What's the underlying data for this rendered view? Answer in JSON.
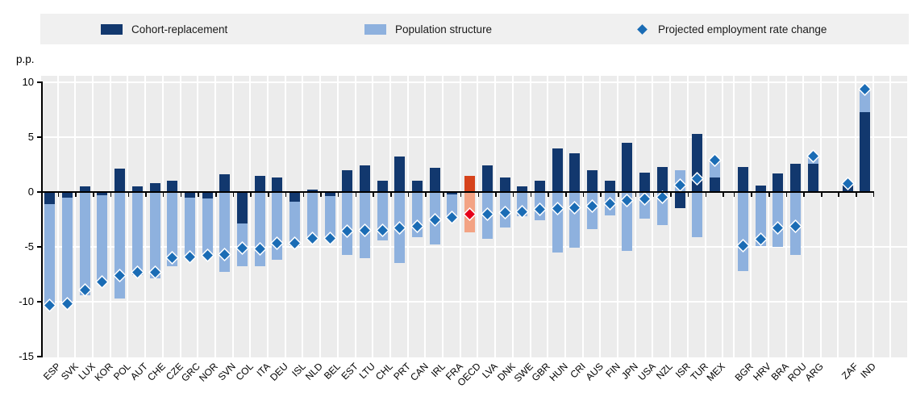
{
  "legend": {
    "items": [
      {
        "label": "Cohort-replacement",
        "marker": "square-swatch",
        "color": "#12386e"
      },
      {
        "label": "Population structure",
        "marker": "square-swatch",
        "color": "#8eb1de"
      },
      {
        "label": "Projected employment rate change",
        "marker": "diamond-marker",
        "color": "#1a6cb5"
      }
    ]
  },
  "y_axis": {
    "title": "p.p.",
    "ticks": [
      10,
      5,
      0,
      -5,
      -10,
      -15
    ]
  },
  "colors": {
    "cohort": "#12386e",
    "population": "#8eb1de",
    "projected": "#1a6cb5",
    "oecd_cohort": "#d6431c",
    "oecd_population": "#f3a384",
    "oecd_projected": "#e60019",
    "plot_bg": "#ececec",
    "legend_bg": "#f0f0f0",
    "gridline": "#ffffff",
    "axis": "#000000"
  },
  "chart_data": {
    "type": "bar",
    "stacked": true,
    "title": "",
    "ylabel": "p.p.",
    "ylim": [
      -15,
      10
    ],
    "yticks": [
      10,
      5,
      0,
      -5,
      -10,
      -15
    ],
    "grid": "horizontal-white-on-gray",
    "legend_position": "top",
    "highlight_category": "OECD",
    "gaps_after": [
      "MEX",
      "ARG"
    ],
    "categories": [
      "ESP",
      "SVK",
      "LUX",
      "KOR",
      "POL",
      "AUT",
      "CHE",
      "CZE",
      "GRC",
      "NOR",
      "SVN",
      "COL",
      "ITA",
      "DEU",
      "ISL",
      "NLD",
      "BEL",
      "EST",
      "LTU",
      "CHL",
      "PRT",
      "CAN",
      "IRL",
      "FRA",
      "OECD",
      "LVA",
      "DNK",
      "SWE",
      "GBR",
      "HUN",
      "CRI",
      "AUS",
      "FIN",
      "JPN",
      "USA",
      "NZL",
      "ISR",
      "TUR",
      "MEX",
      "BGR",
      "HRV",
      "BRA",
      "ROU",
      "ARG",
      "ZAF",
      "IND"
    ],
    "series": [
      {
        "name": "Cohort-replacement",
        "render": "bar",
        "values": [
          -1.1,
          -0.5,
          0.5,
          -0.3,
          2.1,
          0.5,
          0.8,
          1.0,
          -0.5,
          -0.6,
          1.6,
          -2.9,
          1.5,
          1.3,
          -0.9,
          0.2,
          -0.4,
          2.0,
          2.4,
          1.0,
          3.2,
          1.0,
          2.2,
          -0.2,
          1.5,
          2.4,
          1.3,
          0.5,
          1.0,
          4.0,
          3.5,
          2.0,
          1.0,
          4.5,
          1.8,
          2.3,
          -1.5,
          5.3,
          1.3,
          2.3,
          0.6,
          1.7,
          2.6,
          2.6,
          0.7,
          7.3
        ]
      },
      {
        "name": "Population structure",
        "render": "bar",
        "values": [
          -9.2,
          -9.7,
          -9.4,
          -7.9,
          -9.7,
          -7.6,
          -7.9,
          -6.8,
          -5.3,
          -5.2,
          -7.3,
          -3.9,
          -6.8,
          -6.2,
          -4.0,
          -4.3,
          -3.7,
          -5.7,
          -6.0,
          -4.4,
          -6.5,
          -4.1,
          -4.8,
          -2.1,
          -3.7,
          -4.3,
          -3.2,
          -2.2,
          -2.6,
          -5.5,
          -5.1,
          -3.4,
          -2.1,
          -5.4,
          -2.4,
          -3.0,
          2.0,
          -4.1,
          1.5,
          -7.2,
          -4.9,
          -5.0,
          -5.7,
          0.7,
          0.1,
          1.9
        ]
      },
      {
        "name": "Projected employment rate change",
        "render": "diamond",
        "values": [
          -10.3,
          -10.2,
          -8.9,
          -8.2,
          -7.6,
          -7.3,
          -7.3,
          -6.0,
          -5.9,
          -5.8,
          -5.7,
          -5.1,
          -5.2,
          -4.7,
          -4.7,
          -4.2,
          -4.2,
          -3.6,
          -3.5,
          -3.5,
          -3.3,
          -3.1,
          -2.5,
          -2.3,
          -2.0,
          -2.0,
          -1.9,
          -1.8,
          -1.6,
          -1.5,
          -1.4,
          -1.3,
          -1.1,
          -0.8,
          -0.6,
          -0.5,
          0.6,
          1.2,
          2.9,
          -4.9,
          -4.3,
          -3.3,
          -3.1,
          3.3,
          0.8,
          9.4
        ]
      }
    ]
  }
}
